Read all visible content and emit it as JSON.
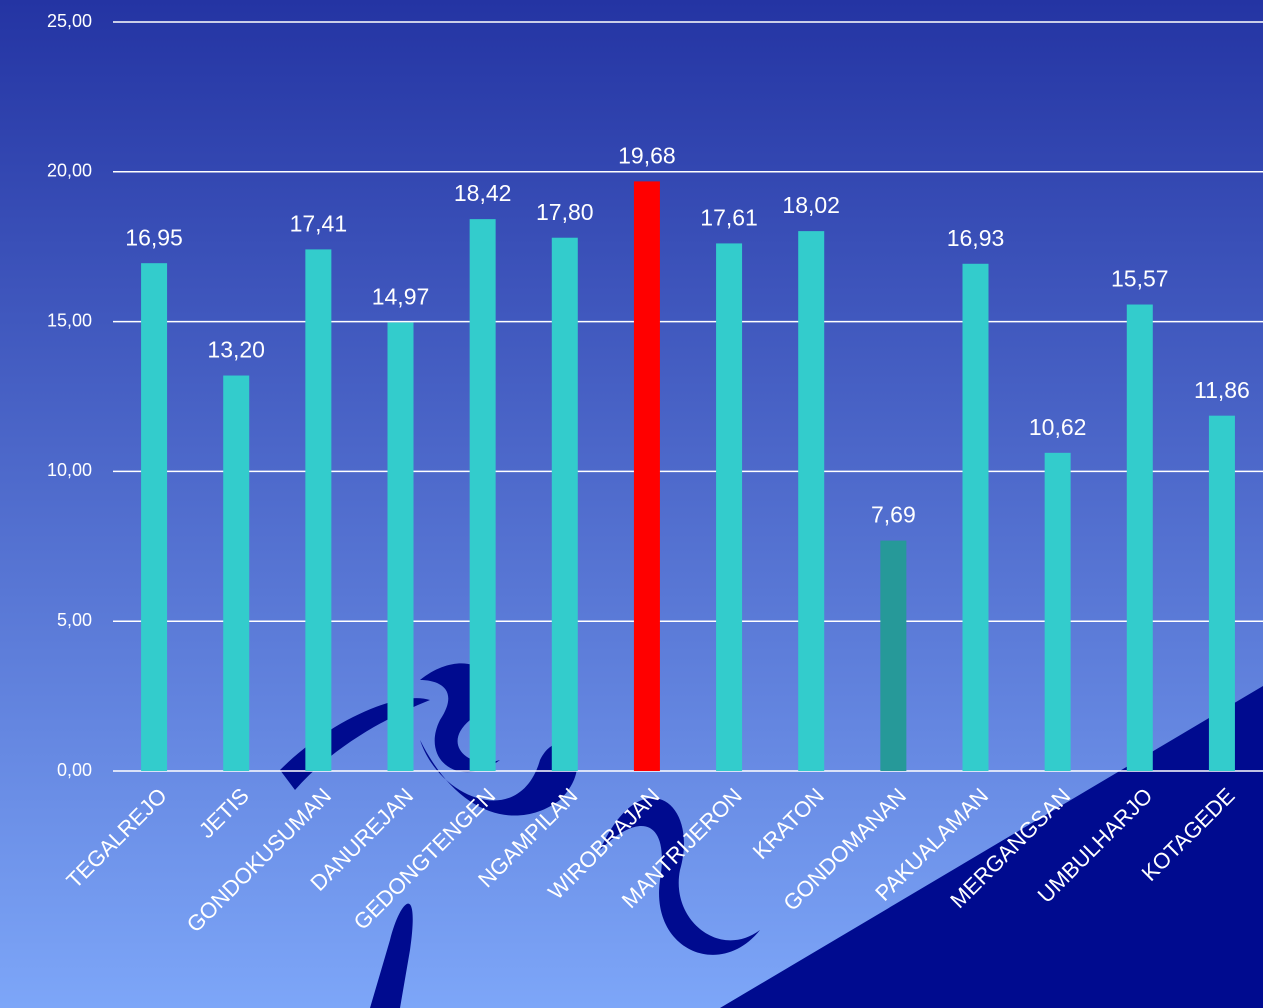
{
  "chart_data": {
    "type": "bar",
    "categories": [
      "TEGALREJO",
      "JETIS",
      "GONDOKUSUMAN",
      "DANUREJAN",
      "GEDONGTENGEN",
      "NGAMPILAN",
      "WIROBRAJAN",
      "MANTRIJERON",
      "KRATON",
      "GONDOMANAN",
      "PAKUALAMAN",
      "MERGANGSAN",
      "UMBULHARJO",
      "KOTAGEDE"
    ],
    "values": [
      16.95,
      13.2,
      17.41,
      14.97,
      18.42,
      17.8,
      19.68,
      17.61,
      18.02,
      7.69,
      16.93,
      10.62,
      15.57,
      11.86
    ],
    "value_labels": [
      "16,95",
      "13,20",
      "17,41",
      "14,97",
      "18,42",
      "17,80",
      "19,68",
      "17,61",
      "18,02",
      "7,69",
      "16,93",
      "10,62",
      "15,57",
      "11,86"
    ],
    "colors": [
      "#33cccc",
      "#33cccc",
      "#33cccc",
      "#33cccc",
      "#33cccc",
      "#33cccc",
      "#ff0000",
      "#33cccc",
      "#33cccc",
      "#269999",
      "#33cccc",
      "#33cccc",
      "#33cccc",
      "#33cccc"
    ],
    "ylim": [
      0,
      25
    ],
    "yticks": [
      {
        "value": 0,
        "label": "0,00"
      },
      {
        "value": 5,
        "label": "5,00"
      },
      {
        "value": 10,
        "label": "10,00"
      },
      {
        "value": 15,
        "label": "15,00"
      },
      {
        "value": 20,
        "label": "20,00"
      },
      {
        "value": 25,
        "label": "25,00"
      }
    ],
    "grid": true
  }
}
